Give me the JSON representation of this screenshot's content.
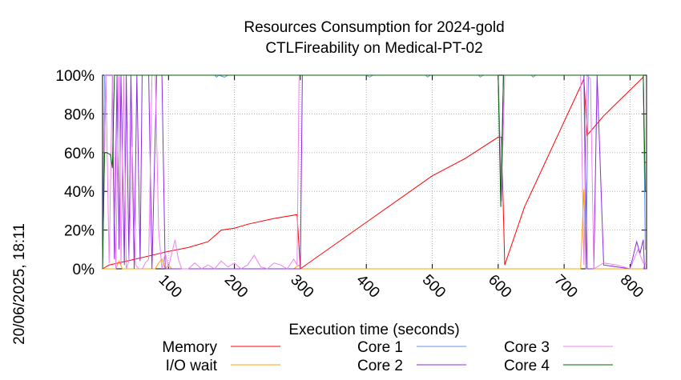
{
  "chart_data": {
    "type": "line",
    "title": "Resources Consumption for 2024-gold",
    "subtitle": "CTLFireability on Medical-PT-02",
    "xlabel": "Execution time (seconds)",
    "ylabel": "",
    "side_label": "20/06/2025, 18:11",
    "xlim": [
      0,
      825
    ],
    "ylim": [
      0,
      100
    ],
    "x_ticks": [
      100,
      200,
      300,
      400,
      500,
      600,
      700,
      800
    ],
    "y_ticks": [
      0,
      20,
      40,
      60,
      80,
      100
    ],
    "y_tick_labels": [
      "0%",
      "20%",
      "40%",
      "60%",
      "80%",
      "100%"
    ],
    "grid": true,
    "legend_position": "bottom",
    "series": [
      {
        "name": "Memory",
        "color": "#ff0000",
        "points": [
          [
            0,
            0
          ],
          [
            10,
            2
          ],
          [
            50,
            5
          ],
          [
            100,
            9
          ],
          [
            130,
            11
          ],
          [
            160,
            14
          ],
          [
            180,
            20
          ],
          [
            200,
            21
          ],
          [
            220,
            23
          ],
          [
            260,
            26
          ],
          [
            295,
            28
          ],
          [
            300,
            0
          ],
          [
            400,
            24
          ],
          [
            500,
            48
          ],
          [
            550,
            57
          ],
          [
            600,
            68
          ],
          [
            605,
            68
          ],
          [
            610,
            2
          ],
          [
            640,
            32
          ],
          [
            700,
            76
          ],
          [
            730,
            98
          ],
          [
            735,
            69
          ],
          [
            760,
            79
          ],
          [
            820,
            99
          ],
          [
            822,
            55
          ],
          [
            825,
            55
          ]
        ]
      },
      {
        "name": "I/O wait",
        "color": "#ffa500",
        "points": [
          [
            0,
            0
          ],
          [
            20,
            0
          ],
          [
            25,
            4
          ],
          [
            30,
            0
          ],
          [
            80,
            0
          ],
          [
            85,
            3
          ],
          [
            90,
            5
          ],
          [
            95,
            0
          ],
          [
            100,
            2
          ],
          [
            105,
            0
          ],
          [
            290,
            0
          ],
          [
            298,
            2
          ],
          [
            300,
            0
          ],
          [
            725,
            0
          ],
          [
            730,
            41
          ],
          [
            733,
            0
          ],
          [
            820,
            0
          ],
          [
            823,
            3
          ],
          [
            825,
            3
          ]
        ]
      },
      {
        "name": "Core 1",
        "color": "#6495ed",
        "points": [
          [
            0,
            0
          ],
          [
            3,
            100
          ],
          [
            170,
            100
          ],
          [
            173,
            99
          ],
          [
            176,
            100
          ],
          [
            185,
            99
          ],
          [
            190,
            100
          ],
          [
            300,
            100
          ],
          [
            400,
            100
          ],
          [
            405,
            99
          ],
          [
            410,
            100
          ],
          [
            490,
            100
          ],
          [
            493,
            99
          ],
          [
            497,
            100
          ],
          [
            570,
            100
          ],
          [
            573,
            99
          ],
          [
            577,
            100
          ],
          [
            600,
            100
          ],
          [
            604,
            36
          ],
          [
            608,
            100
          ],
          [
            650,
            100
          ],
          [
            653,
            99
          ],
          [
            657,
            100
          ],
          [
            730,
            100
          ],
          [
            733,
            0
          ],
          [
            737,
            100
          ],
          [
            820,
            100
          ],
          [
            823,
            10
          ],
          [
            825,
            10
          ]
        ]
      },
      {
        "name": "Core 2",
        "color": "#8a2be2",
        "points": [
          [
            0,
            0
          ],
          [
            5,
            100
          ],
          [
            15,
            100
          ],
          [
            18,
            5
          ],
          [
            22,
            100
          ],
          [
            25,
            10
          ],
          [
            28,
            100
          ],
          [
            33,
            2
          ],
          [
            36,
            100
          ],
          [
            40,
            4
          ],
          [
            43,
            100
          ],
          [
            48,
            0
          ],
          [
            52,
            100
          ],
          [
            57,
            4
          ],
          [
            60,
            100
          ],
          [
            70,
            100
          ],
          [
            75,
            0
          ],
          [
            82,
            100
          ],
          [
            90,
            100
          ],
          [
            95,
            0
          ],
          [
            130,
            0
          ],
          [
            300,
            0
          ],
          [
            303,
            100
          ],
          [
            600,
            100
          ],
          [
            605,
            35
          ],
          [
            608,
            100
          ],
          [
            730,
            100
          ],
          [
            735,
            0
          ],
          [
            745,
            0
          ],
          [
            750,
            100
          ],
          [
            760,
            2
          ],
          [
            780,
            1
          ],
          [
            800,
            0
          ],
          [
            810,
            14
          ],
          [
            815,
            8
          ],
          [
            820,
            15
          ],
          [
            822,
            0
          ],
          [
            825,
            0
          ]
        ]
      },
      {
        "name": "Core 3",
        "color": "#ee82ee",
        "points": [
          [
            0,
            0
          ],
          [
            5,
            100
          ],
          [
            10,
            3
          ],
          [
            15,
            100
          ],
          [
            20,
            0
          ],
          [
            25,
            100
          ],
          [
            28,
            2
          ],
          [
            32,
            100
          ],
          [
            36,
            0
          ],
          [
            40,
            4
          ],
          [
            45,
            63
          ],
          [
            50,
            2
          ],
          [
            55,
            0
          ],
          [
            60,
            0
          ],
          [
            65,
            3
          ],
          [
            70,
            5
          ],
          [
            75,
            100
          ],
          [
            80,
            100
          ],
          [
            85,
            20
          ],
          [
            90,
            0
          ],
          [
            95,
            8
          ],
          [
            100,
            1
          ],
          [
            110,
            15
          ],
          [
            115,
            5
          ],
          [
            120,
            0
          ],
          [
            130,
            0
          ],
          [
            140,
            3
          ],
          [
            150,
            0
          ],
          [
            160,
            2
          ],
          [
            170,
            0
          ],
          [
            180,
            4
          ],
          [
            190,
            1
          ],
          [
            200,
            3
          ],
          [
            210,
            0
          ],
          [
            220,
            2
          ],
          [
            230,
            7
          ],
          [
            240,
            1
          ],
          [
            250,
            0
          ],
          [
            260,
            3
          ],
          [
            270,
            2
          ],
          [
            280,
            0
          ],
          [
            290,
            5
          ],
          [
            295,
            2
          ],
          [
            298,
            100
          ],
          [
            300,
            100
          ],
          [
            600,
            100
          ],
          [
            605,
            35
          ],
          [
            610,
            100
          ],
          [
            725,
            100
          ],
          [
            730,
            2
          ],
          [
            735,
            100
          ],
          [
            740,
            98
          ],
          [
            745,
            0
          ],
          [
            760,
            3
          ],
          [
            780,
            2
          ],
          [
            800,
            0
          ],
          [
            812,
            10
          ],
          [
            820,
            3
          ],
          [
            825,
            3
          ]
        ]
      },
      {
        "name": "Core 4",
        "color": "#006400",
        "points": [
          [
            0,
            0
          ],
          [
            3,
            60
          ],
          [
            6,
            60
          ],
          [
            12,
            59
          ],
          [
            15,
            52
          ],
          [
            18,
            100
          ],
          [
            300,
            100
          ],
          [
            600,
            100
          ],
          [
            604,
            32
          ],
          [
            608,
            100
          ],
          [
            820,
            100
          ],
          [
            823,
            40
          ],
          [
            825,
            40
          ]
        ]
      }
    ]
  }
}
